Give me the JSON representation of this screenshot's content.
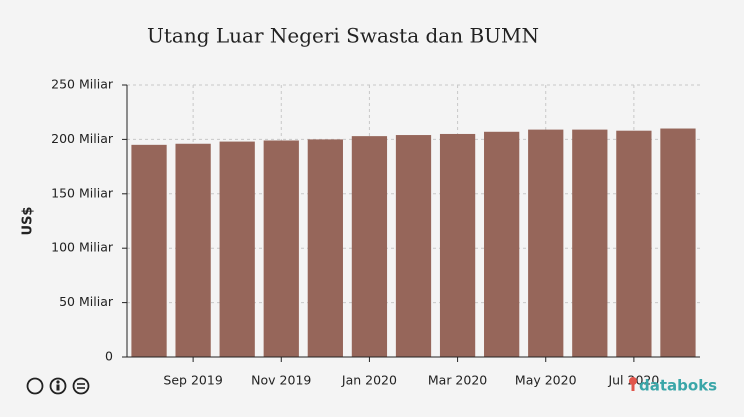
{
  "chart_data": {
    "type": "bar",
    "title": "Utang Luar Negeri Swasta dan BUMN",
    "y_label": "US$",
    "categories": [
      null,
      "Sep 2019",
      null,
      "Nov 2019",
      null,
      "Jan 2020",
      null,
      "Mar 2020",
      null,
      "May 2020",
      null,
      "Jul 2020",
      null
    ],
    "values": [
      195,
      196,
      198,
      199,
      200,
      203,
      204,
      205,
      207,
      209,
      209,
      208,
      210
    ],
    "color": "#96665a",
    "ylim": [
      0,
      250
    ],
    "yticks": [
      0,
      {
        "value": 50,
        "label": "50 Miliar"
      },
      {
        "value": 100,
        "label": "100 Miliar"
      },
      {
        "value": 150,
        "label": "150 Miliar"
      },
      {
        "value": 200,
        "label": "200 Miliar"
      },
      {
        "value": 250,
        "label": "250 Miliar"
      }
    ],
    "grid": true
  },
  "brand": "databoks"
}
